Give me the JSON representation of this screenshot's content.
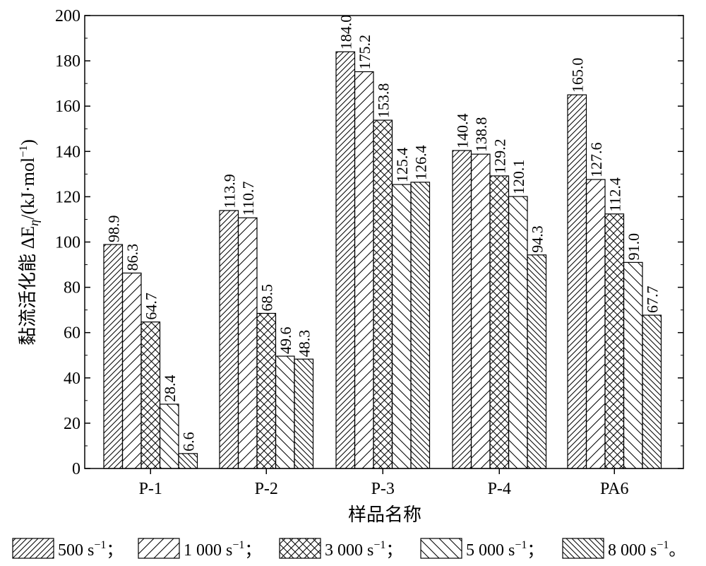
{
  "chart_data": {
    "type": "bar",
    "ylabel": "黏流活化能 ΔE",
    "ylabel_sub": "η",
    "ylabel_unit_pre": "/(kJ·mol",
    "ylabel_unit_sup": "−1",
    "ylabel_unit_post": ")",
    "xlabel": "样品名称",
    "categories": [
      "P-1",
      "P-2",
      "P-3",
      "P-4",
      "PA6"
    ],
    "ylim": [
      0,
      200
    ],
    "yticks": [
      0,
      20,
      40,
      60,
      80,
      100,
      120,
      140,
      160,
      180,
      200
    ],
    "grid": false,
    "legend_position": "bottom",
    "series": [
      {
        "name": "500 s",
        "suffix": "−1",
        "sep": "；",
        "pattern": "diag-dense",
        "values": [
          98.9,
          113.9,
          184.0,
          140.4,
          165.0
        ],
        "labels": [
          "98.9",
          "113.9",
          "184.0",
          "140.4",
          "165.0"
        ]
      },
      {
        "name": "1 000 s",
        "suffix": "−1",
        "sep": "；",
        "pattern": "diag-sparse",
        "values": [
          86.3,
          110.7,
          175.2,
          138.8,
          127.6
        ],
        "labels": [
          "86.3",
          "110.7",
          "175.2",
          "138.8",
          "127.6"
        ]
      },
      {
        "name": "3 000 s",
        "suffix": "−1",
        "sep": "；",
        "pattern": "cross",
        "values": [
          64.7,
          68.5,
          153.8,
          129.2,
          112.4
        ],
        "labels": [
          "64.7",
          "68.5",
          "153.8",
          "129.2",
          "112.4"
        ]
      },
      {
        "name": "5 000 s",
        "suffix": "−1",
        "sep": "；",
        "pattern": "back-sparse",
        "values": [
          28.4,
          49.6,
          125.4,
          120.1,
          91.0
        ],
        "labels": [
          "28.4",
          "49.6",
          "125.4",
          "120.1",
          "91.0"
        ]
      },
      {
        "name": "8 000 s",
        "suffix": "−1",
        "sep": "。",
        "pattern": "back-dense",
        "values": [
          6.6,
          48.3,
          126.4,
          94.3,
          67.7
        ],
        "labels": [
          "6.6",
          "48.3",
          "126.4",
          "94.3",
          "67.7"
        ]
      }
    ]
  }
}
